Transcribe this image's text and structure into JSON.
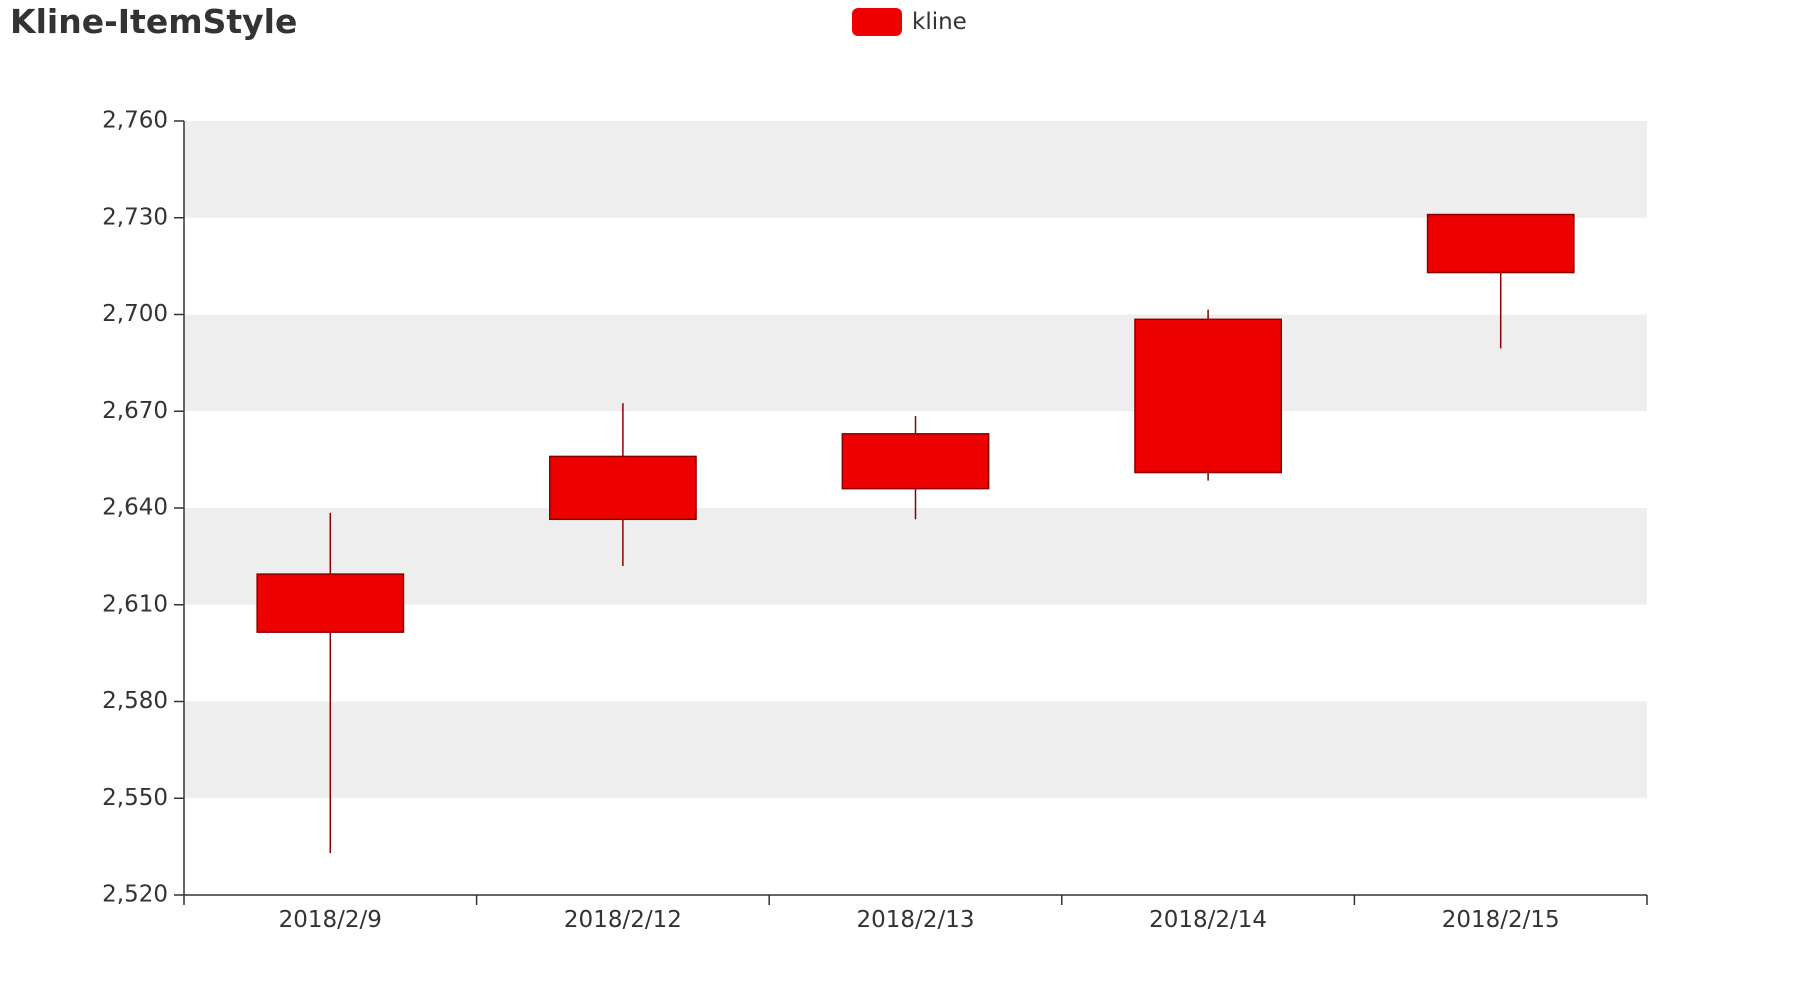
{
  "chart_data": {
    "type": "candlestick",
    "title": "Kline-ItemStyle",
    "legend": {
      "entries": [
        "kline"
      ],
      "placement": "top-center"
    },
    "categories": [
      "2018/2/9",
      "2018/2/12",
      "2018/2/13",
      "2018/2/14",
      "2018/2/15"
    ],
    "y_ticks": [
      "2,520",
      "2,550",
      "2,580",
      "2,610",
      "2,640",
      "2,670",
      "2,700",
      "2,730",
      "2,760"
    ],
    "ylim": [
      2520,
      2760
    ],
    "y_interval": 30,
    "series": [
      {
        "name": "kline",
        "ohlc": [
          {
            "open": 2601.5,
            "close": 2619.5,
            "low": 2533,
            "high": 2638.5
          },
          {
            "open": 2636.5,
            "close": 2656,
            "low": 2622,
            "high": 2672.5
          },
          {
            "open": 2646,
            "close": 2663,
            "low": 2636.5,
            "high": 2668.5
          },
          {
            "open": 2651,
            "close": 2698.5,
            "low": 2648.5,
            "high": 2701.5
          },
          {
            "open": 2713,
            "close": 2731,
            "low": 2689.5,
            "high": 2731
          }
        ]
      }
    ],
    "colors": {
      "body_fill": "#ec0000",
      "border": "#8a0000",
      "band": "#eeeeee",
      "axis": "#333333"
    },
    "split_area": true
  }
}
